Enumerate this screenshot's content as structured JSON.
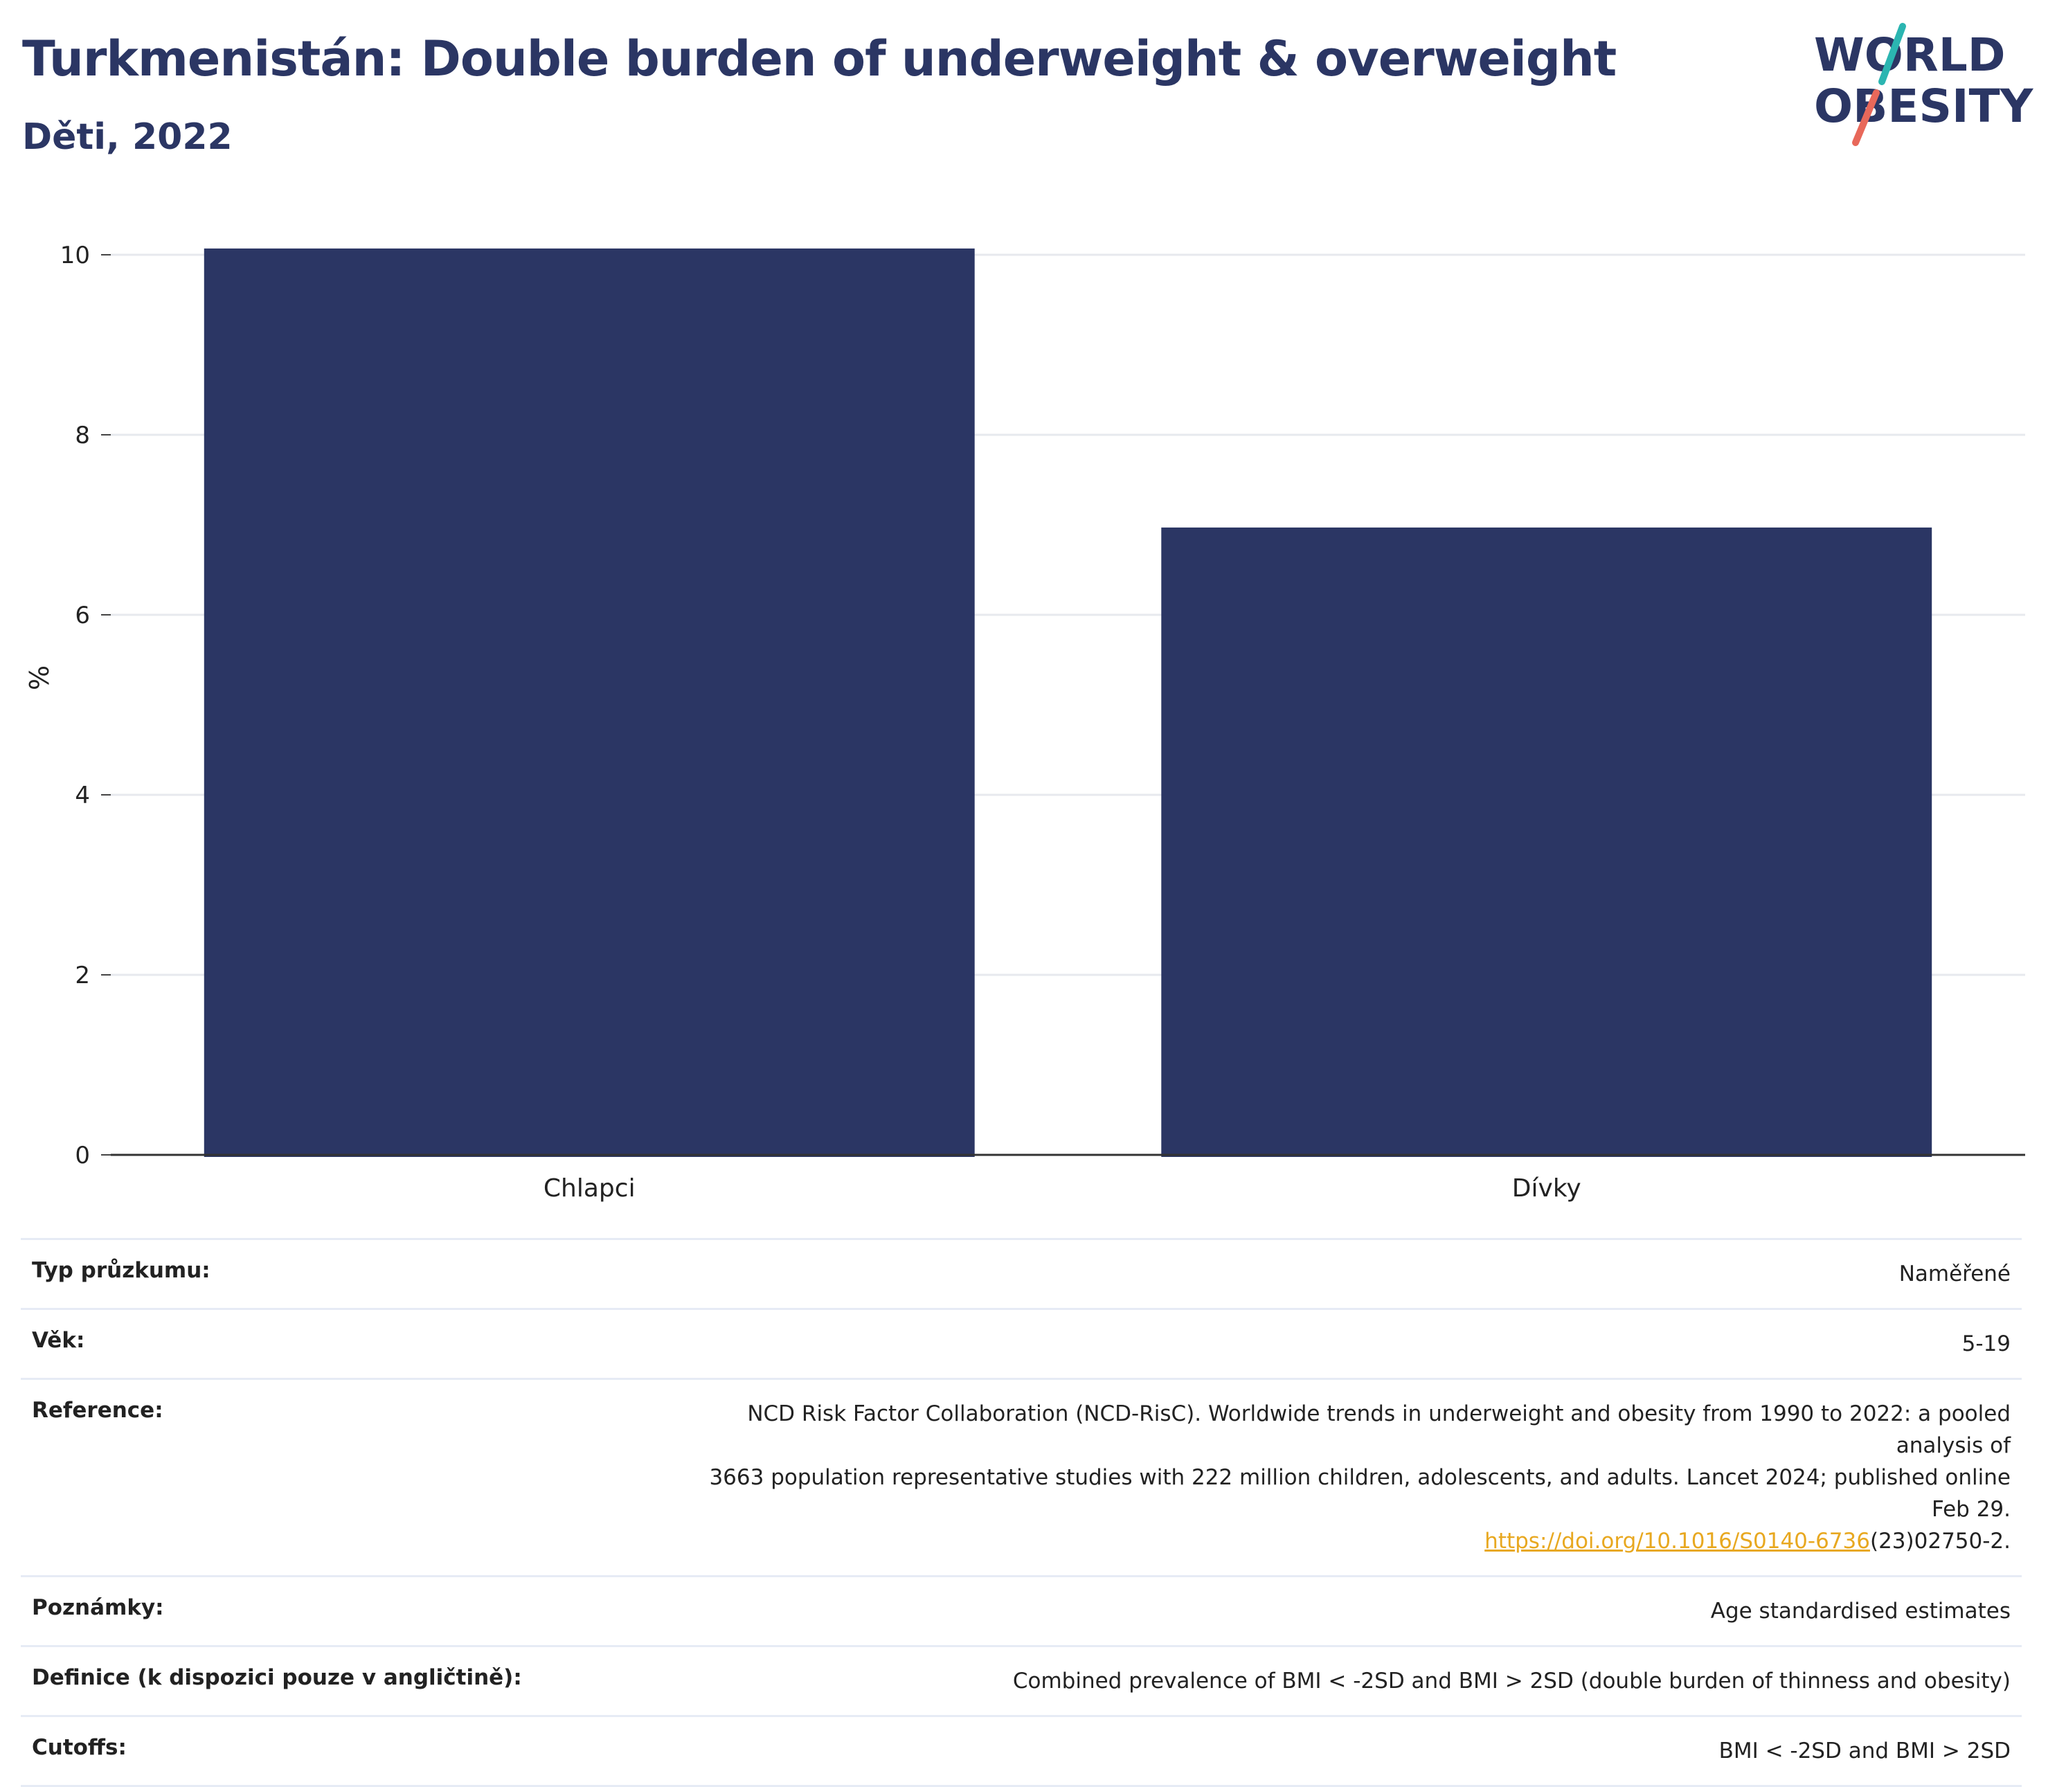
{
  "header": {
    "title": "Turkmenistán: Double burden of underweight & overweight",
    "subtitle": "Děti, 2022"
  },
  "logo": {
    "line1": "WORLD",
    "line2": "OBESITY",
    "accent_teal": "#2bb5b1",
    "accent_coral": "#e8685a",
    "text_color": "#2b3664"
  },
  "chart_data": {
    "type": "bar",
    "categories": [
      "Chlapci",
      "Dívky"
    ],
    "values": [
      10.07,
      6.97
    ],
    "ylabel": "%",
    "xlabel": "",
    "ylim": [
      0,
      10.6
    ],
    "yticks": [
      0,
      2,
      4,
      6,
      8,
      10
    ],
    "bar_color": "#2b3664",
    "grid": true,
    "legend": "none"
  },
  "info": {
    "rows": [
      {
        "label": "Typ průzkumu:",
        "value": "Naměřené"
      },
      {
        "label": "Věk:",
        "value": "5-19"
      },
      {
        "label": "Reference:",
        "value_lines": [
          "NCD Risk Factor Collaboration (NCD-RisC). Worldwide trends in underweight and obesity from 1990 to 2022: a pooled analysis of",
          "3663 population representative studies with 222 million children, adolescents, and adults. Lancet 2024; published online Feb 29."
        ],
        "link_text": "https://doi.org/10.1016/S0140-6736",
        "link_suffix": "(23)02750-2."
      },
      {
        "label": "Poznámky:",
        "value": "Age standardised estimates"
      },
      {
        "label": "Definice (k dispozici pouze v angličtině):",
        "value": "Combined prevalence of BMI < -2SD and BMI > 2SD (double burden of thinness and obesity)"
      },
      {
        "label": "Cutoffs:",
        "value": "BMI < -2SD and BMI > 2SD"
      }
    ],
    "link_color": "#e8a820"
  }
}
